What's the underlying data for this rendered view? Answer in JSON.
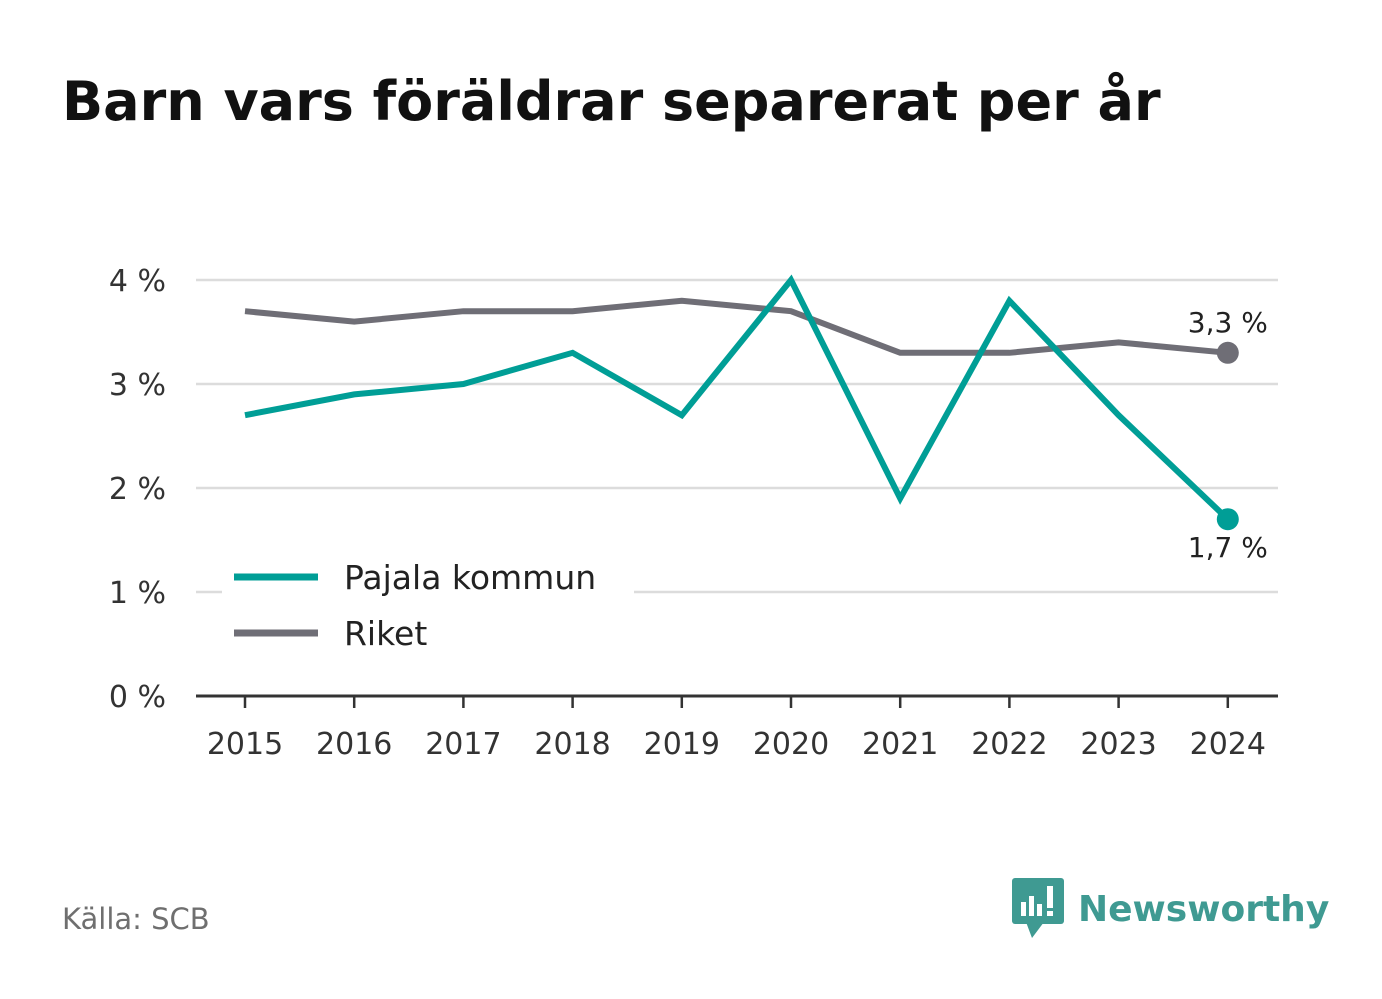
{
  "title": "Barn vars föräldrar separerat per år",
  "source": "Källa: SCB",
  "brand": {
    "name": "Newsworthy",
    "icon": "newsworthy-logo-icon"
  },
  "colors": {
    "pajala": "#009e96",
    "riket": "#6f6e76",
    "grid": "#dcdcdc",
    "axis": "#333333",
    "text": "#333333",
    "brand": "#3f9a92"
  },
  "chart_data": {
    "type": "line",
    "title": "Barn vars föräldrar separerat per år",
    "x": [
      "2015",
      "2016",
      "2017",
      "2018",
      "2019",
      "2020",
      "2021",
      "2022",
      "2023",
      "2024"
    ],
    "ylim": [
      0,
      4
    ],
    "y_ticks": [
      "0 %",
      "1 %",
      "2 %",
      "3 %",
      "4 %"
    ],
    "grid": true,
    "legend_position": "bottom-left",
    "series": [
      {
        "name": "Pajala kommun",
        "color": "#009e96",
        "values": [
          2.7,
          2.9,
          3.0,
          3.3,
          2.7,
          4.0,
          1.9,
          3.8,
          2.7,
          1.7
        ],
        "end_label": "1,7 %"
      },
      {
        "name": "Riket",
        "color": "#6f6e76",
        "values": [
          3.7,
          3.6,
          3.7,
          3.7,
          3.8,
          3.7,
          3.3,
          3.3,
          3.4,
          3.3
        ],
        "end_label": "3,3 %"
      }
    ]
  }
}
